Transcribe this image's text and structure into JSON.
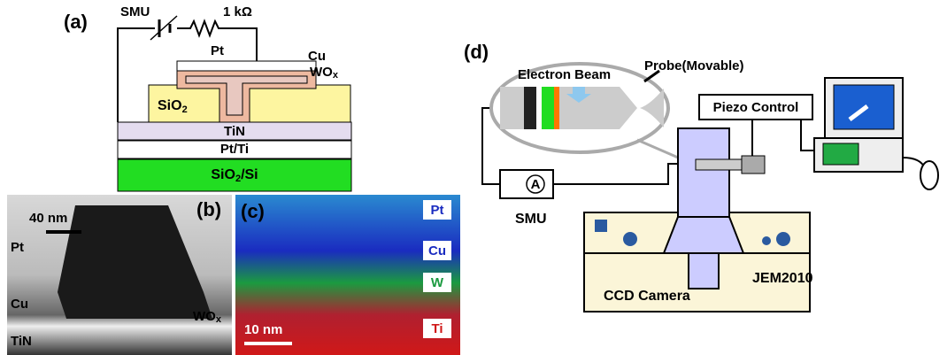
{
  "panel_a": {
    "label": "(a)",
    "smu": "SMU",
    "resistor": "1 kΩ",
    "pt": "Pt",
    "cu": "Cu",
    "wox": {
      "main": "WO",
      "sub": "x"
    },
    "sio2": {
      "main": "SiO",
      "sub": "2"
    },
    "tin": "TiN",
    "pt_ti": "Pt/Ti",
    "substrate": {
      "main": "SiO",
      "sub": "2",
      "rest": "/Si"
    }
  },
  "panel_b": {
    "label": "(b)",
    "scale_bar": "40 nm",
    "pt": "Pt",
    "cu": "Cu",
    "wox": {
      "main": "WO",
      "sub": "x"
    },
    "tin": "TiN"
  },
  "panel_c": {
    "label": "(c)",
    "scale_bar": "10 nm",
    "elements": [
      "Pt",
      "Cu",
      "W",
      "Ti"
    ]
  },
  "panel_d": {
    "label": "(d)",
    "electron_beam": "Electron Beam",
    "probe": "Probe(Movable)",
    "piezo_control": "Piezo Control",
    "ammeter": "A",
    "smu": "SMU",
    "microscope": "JEM2010",
    "camera": "CCD Camera"
  }
}
